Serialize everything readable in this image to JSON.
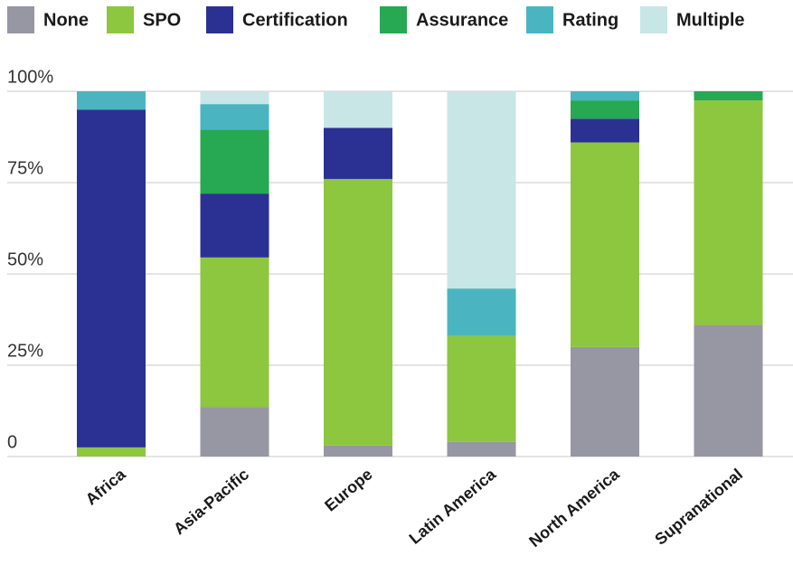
{
  "chart_data": {
    "type": "stacked_bar",
    "categories": [
      "Africa",
      "Asia-Pacific",
      "Europe",
      "Latin America",
      "North America",
      "Supranational"
    ],
    "series": [
      {
        "name": "None",
        "color": "#9796a3",
        "values": [
          0,
          13.5,
          3,
          4,
          30,
          36
        ]
      },
      {
        "name": "SPO",
        "color": "#8dc63f",
        "values": [
          2.5,
          41,
          73,
          29,
          56,
          61.5
        ]
      },
      {
        "name": "Certification",
        "color": "#2b3192",
        "values": [
          92.5,
          17.5,
          14,
          0,
          6.5,
          0
        ]
      },
      {
        "name": "Assurance",
        "color": "#27a852",
        "values": [
          0,
          17.5,
          0,
          0,
          5,
          2.5
        ]
      },
      {
        "name": "Rating",
        "color": "#4ab5c1",
        "values": [
          5,
          7,
          0,
          13,
          2.5,
          0
        ]
      },
      {
        "name": "Multiple",
        "color": "#c8e6e5",
        "values": [
          0,
          3.5,
          10,
          54,
          0,
          0
        ]
      }
    ],
    "ylim": [
      0,
      100
    ],
    "yticks": [
      0,
      {
        "value": 25,
        "label": "25%"
      },
      {
        "value": 50,
        "label": "50%"
      },
      {
        "value": 75,
        "label": "75%"
      },
      {
        "value": 100,
        "label": "100%"
      }
    ],
    "grid": true,
    "legend": "top"
  }
}
